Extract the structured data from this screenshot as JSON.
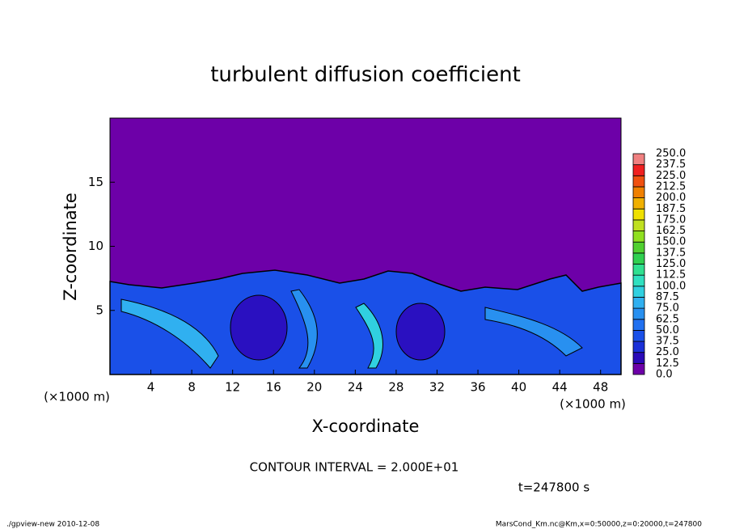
{
  "chart_data": {
    "type": "contour",
    "title": "turbulent diffusion coefficient",
    "xlabel": "X-coordinate",
    "ylabel": "Z-coordinate",
    "x_unit_label": "(×1000 m)",
    "xlim": [
      0,
      50
    ],
    "ylim": [
      0,
      20
    ],
    "xticks": [
      4,
      8,
      12,
      16,
      20,
      24,
      28,
      32,
      36,
      40,
      44,
      48
    ],
    "yticks": [
      5,
      10,
      15
    ],
    "colorbar": {
      "levels": [
        {
          "value": 0,
          "label": "0.0"
        },
        12.5,
        {
          "value": 25,
          "label": "25.0"
        },
        37.5,
        {
          "value": 50,
          "label": "50.0"
        },
        62.5,
        {
          "value": 75,
          "label": "75.0"
        },
        87.5,
        {
          "value": 100,
          "label": "100.0"
        },
        112.5,
        {
          "value": 125,
          "label": "125.0"
        },
        137.5,
        {
          "value": 150,
          "label": "150.0"
        },
        162.5,
        {
          "value": 175,
          "label": "175.0"
        },
        187.5,
        {
          "value": 200,
          "label": "200.0"
        },
        212.5,
        {
          "value": 225,
          "label": "225.0"
        },
        237.5,
        {
          "value": 250,
          "label": "250.0"
        }
      ],
      "colors": [
        "#6d00a8",
        "#2a0ab8",
        "#1a30d8",
        "#1a50e8",
        "#2070f0",
        "#2890f0",
        "#30b0f0",
        "#30d0e0",
        "#30e0c0",
        "#30e090",
        "#30d050",
        "#50d030",
        "#90e020",
        "#c0e020",
        "#f0e000",
        "#f0b000",
        "#f08000",
        "#f05010",
        "#f02020",
        "#f08080"
      ]
    },
    "contour_interval_label": "CONTOUR INTERVAL = 2.000E+01",
    "time_label": "t=247800 s",
    "footer_left": "./gpview-new  2010-12-08",
    "footer_right": "MarsCond_Km.nc@Km,x=0:50000,z=0:20000,t=247800"
  }
}
